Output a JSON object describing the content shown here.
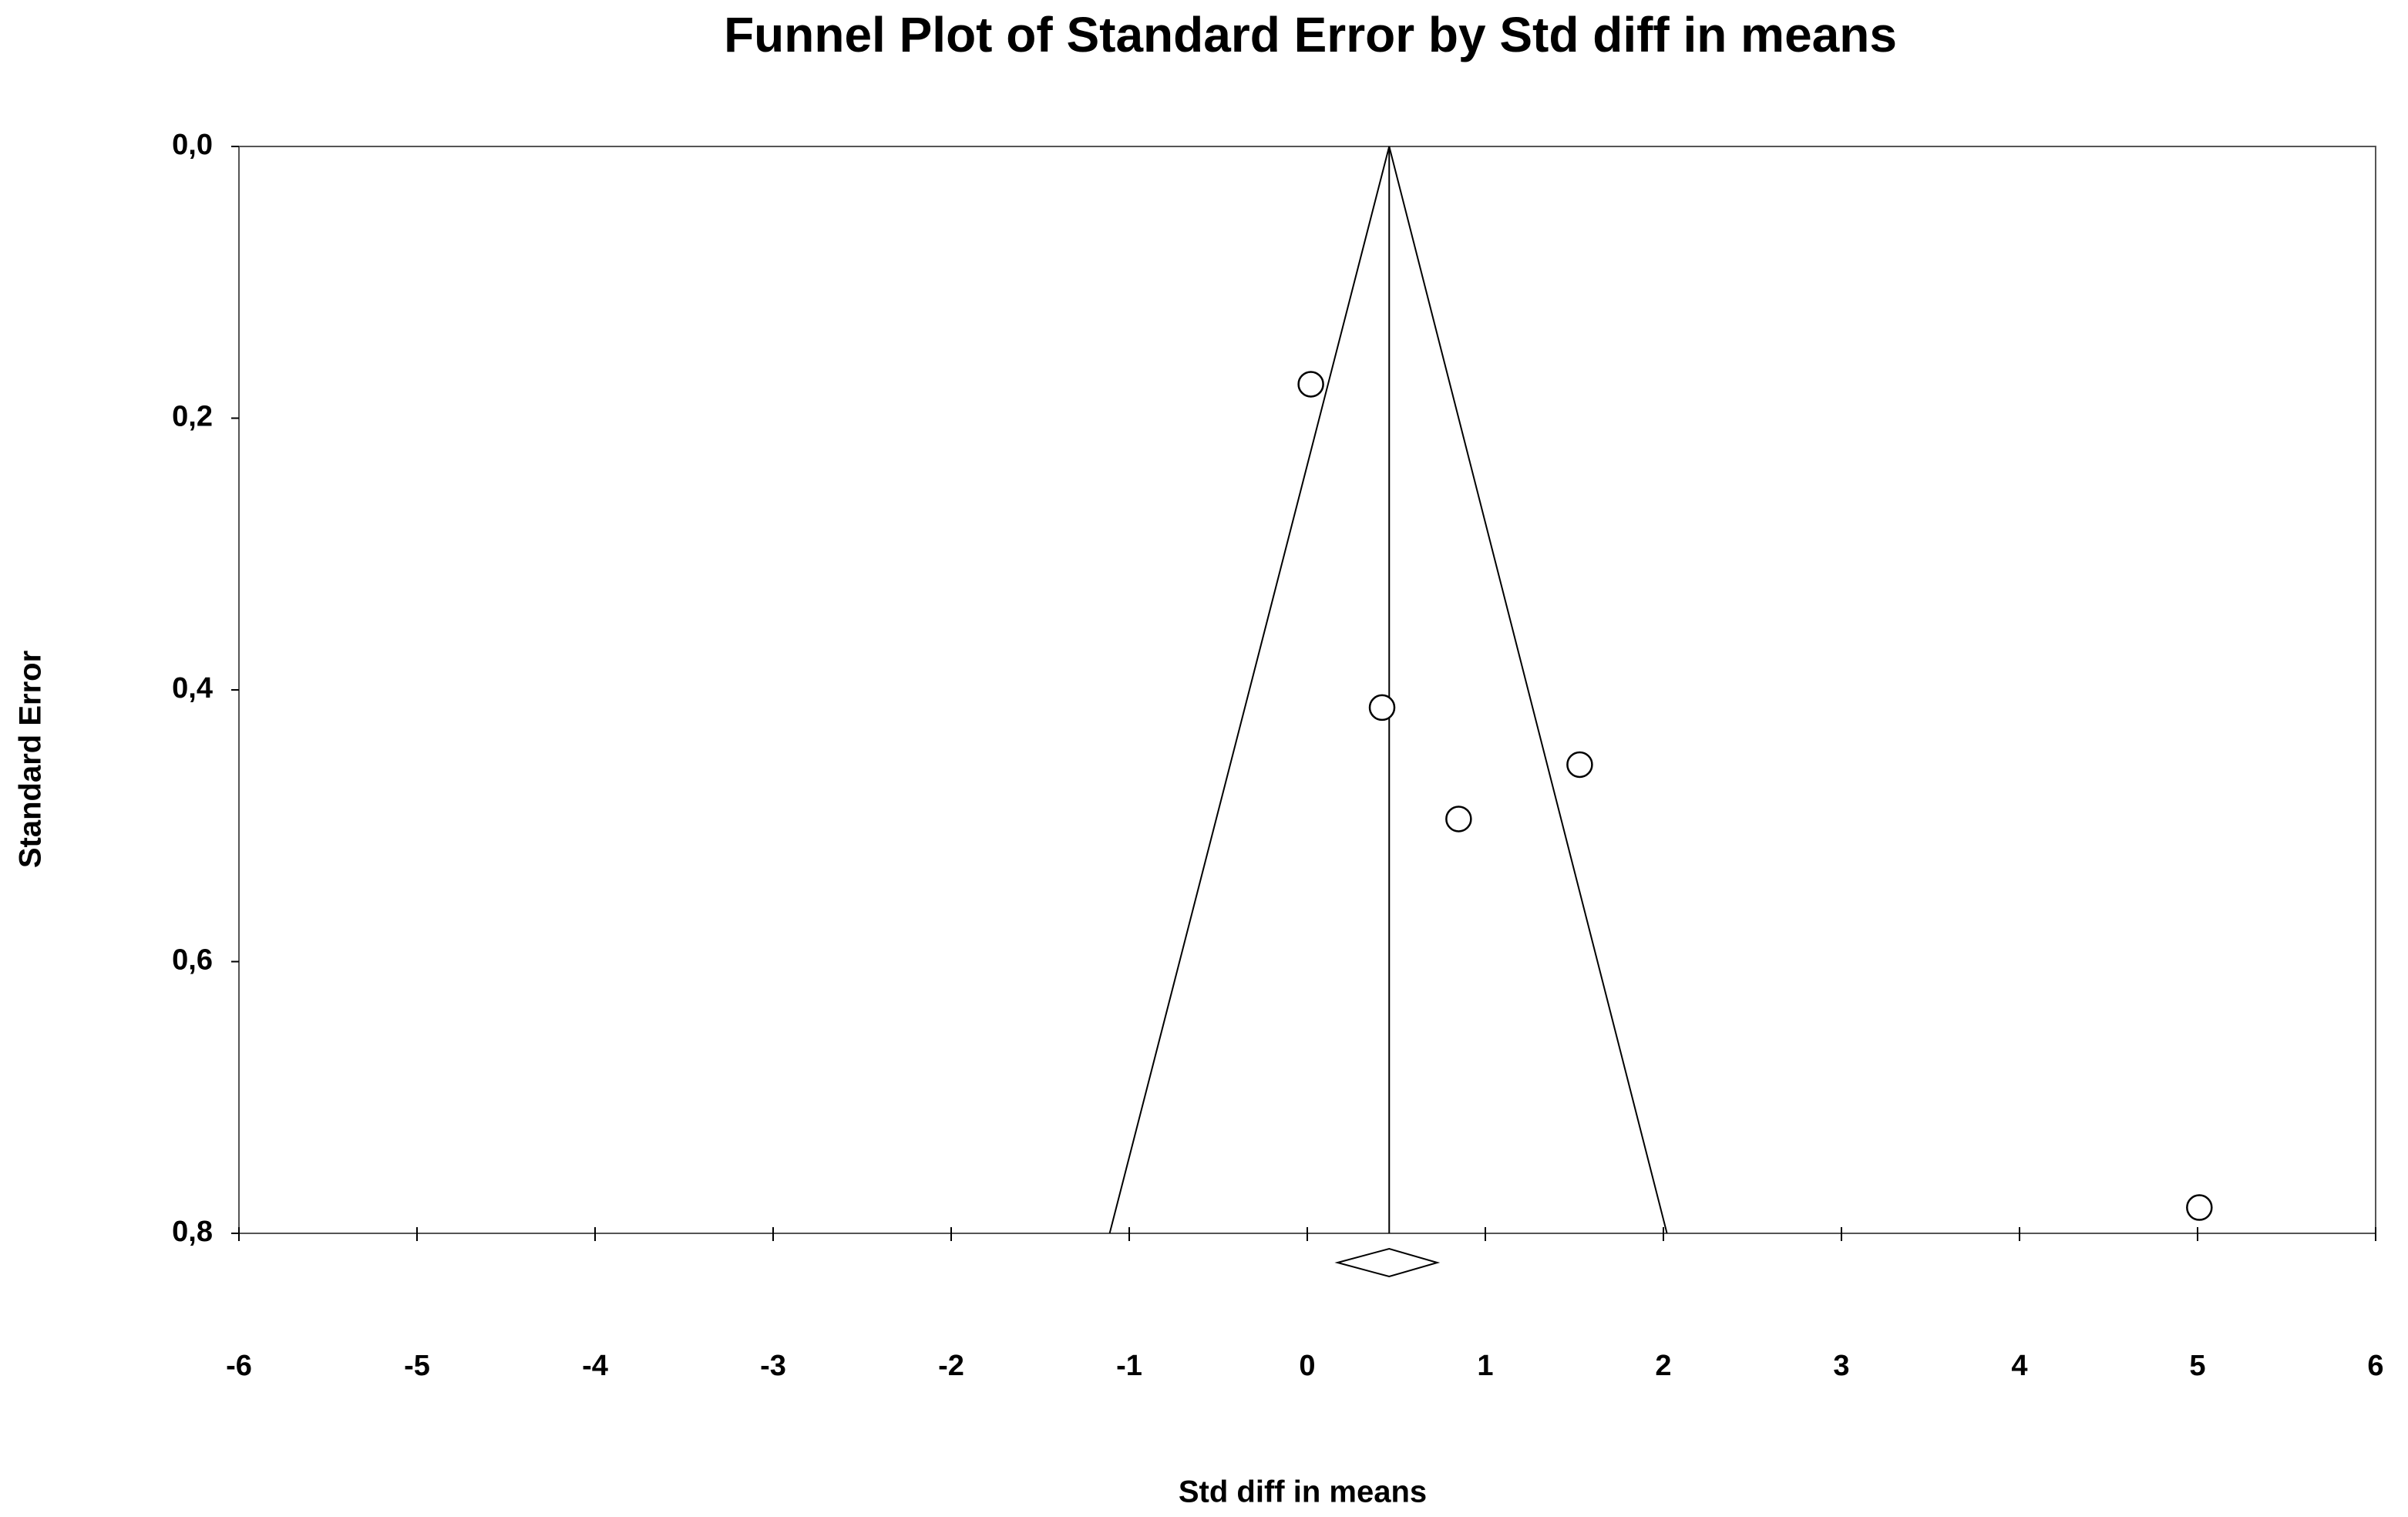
{
  "chart_data": {
    "type": "funnel",
    "title": "Funnel Plot of Standard Error by Std diff in means",
    "x_label": "Std diff in means",
    "y_label": "Standard Error",
    "xlim": [
      -6,
      6
    ],
    "xticks": [
      -6,
      -5,
      -4,
      -3,
      -2,
      -1,
      0,
      1,
      2,
      3,
      4,
      5,
      6
    ],
    "ylim": [
      0,
      0.8
    ],
    "y_inverted": true,
    "yticks": [
      {
        "value": 0,
        "label": "0,0"
      },
      {
        "value": 0.2,
        "label": "0,2"
      },
      {
        "value": 0.4,
        "label": "0,4"
      },
      {
        "value": 0.6,
        "label": "0,6"
      },
      {
        "value": 0.8,
        "label": "0,8"
      }
    ],
    "series": [
      {
        "x": [
          0.02,
          0.42,
          0.85,
          1.53,
          5.01
        ],
        "values": [
          0.175,
          0.413,
          0.495,
          0.455,
          0.781
        ],
        "color": "#000000"
      }
    ],
    "funnel": {
      "apex": 0.46,
      "base": [
        -1.11,
        2.02
      ]
    },
    "summary": {
      "estimate": 0.46,
      "ci": [
        0.17,
        0.73
      ]
    }
  }
}
